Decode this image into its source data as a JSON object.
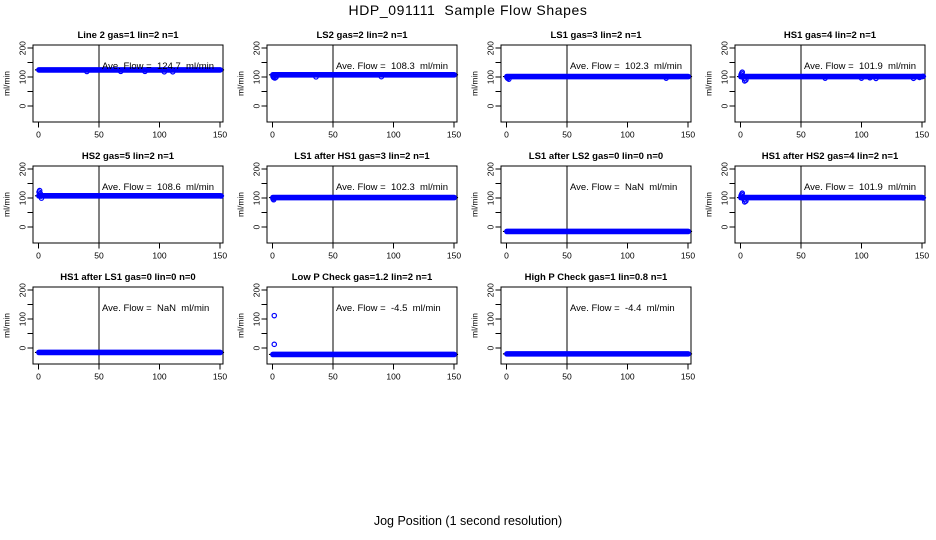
{
  "page": {
    "title": "HDP_091111  Sample Flow Shapes",
    "xlabel": "Jog Position (1 second resolution)"
  },
  "chart_data": {
    "type": "scatter",
    "title": "HDP_091111  Sample Flow Shapes",
    "xlabel": "Jog Position (1 second resolution)",
    "ylabel": "ml/min",
    "grid": {
      "rows": 3,
      "cols": 4
    },
    "xlim": [
      -4.5,
      152.5
    ],
    "ylim": [
      -55,
      211
    ],
    "xticks": [
      0,
      50,
      100,
      150
    ],
    "yticks_all": [
      0,
      50,
      100,
      150,
      200
    ],
    "yticks_labeled": [
      0,
      100,
      200
    ],
    "vline_x": 50,
    "point_color": "#0000FF",
    "line_color": "#000000",
    "annotation_template": "Ave. Flow =  {value}  ml/min",
    "plots": [
      {
        "title": "Line 2 gas=1 lin=2 n=1",
        "ave_flow": "124.7",
        "bar_y": 125,
        "bar_x": [
          0,
          150.5
        ],
        "points": [
          [
            40,
            119.5
          ],
          [
            68,
            120
          ],
          [
            88,
            120
          ],
          [
            104,
            118.5
          ],
          [
            111,
            118.5
          ]
        ]
      },
      {
        "title": "LS2 gas=2 lin=2 n=1",
        "ave_flow": "108.3",
        "bar_y": 108,
        "bar_x": [
          0,
          150.5
        ],
        "points": [
          [
            0.5,
            103
          ],
          [
            1,
            99
          ],
          [
            2,
            97
          ],
          [
            3,
            100
          ],
          [
            36,
            101
          ],
          [
            90,
            101.5
          ]
        ]
      },
      {
        "title": "LS1 gas=3 lin=2 n=1",
        "ave_flow": "102.3",
        "bar_y": 102,
        "bar_x": [
          0,
          150.5
        ],
        "points": [
          [
            0.5,
            99
          ],
          [
            1,
            96
          ],
          [
            2,
            93
          ],
          [
            132,
            96.5
          ]
        ]
      },
      {
        "title": "HS1 gas=4 lin=2 n=1",
        "ave_flow": "101.9",
        "bar_y": 102,
        "bar_x": [
          0,
          150.5
        ],
        "points": [
          [
            0.5,
            108
          ],
          [
            1,
            113
          ],
          [
            1.5,
            117
          ],
          [
            2,
            104
          ],
          [
            3,
            95
          ],
          [
            3.5,
            87
          ],
          [
            4.5,
            90
          ],
          [
            70,
            96.5
          ],
          [
            100,
            96.5
          ],
          [
            107,
            98
          ],
          [
            112,
            95.5
          ],
          [
            143,
            96
          ],
          [
            148,
            99
          ],
          [
            151,
            103
          ]
        ]
      },
      {
        "title": "HS2 gas=5 lin=2 n=1",
        "ave_flow": "108.6",
        "bar_y": 108,
        "bar_x": [
          0,
          150.5
        ],
        "points": [
          [
            0.5,
            121
          ],
          [
            1,
            126
          ],
          [
            1.5,
            116
          ],
          [
            2,
            107
          ],
          [
            2.5,
            100
          ],
          [
            151,
            107.5
          ]
        ]
      },
      {
        "title": "LS1 after HS1 gas=3 lin=2 n=1",
        "ave_flow": "102.3",
        "bar_y": 102,
        "bar_x": [
          0,
          150.5
        ],
        "points": [
          [
            0.5,
            98
          ],
          [
            1,
            94.5
          ]
        ]
      },
      {
        "title": "LS1 after LS2 gas=0 lin=0 n=0",
        "ave_flow": "NaN",
        "bar_y": -15,
        "bar_x": [
          0,
          150.5
        ],
        "points": []
      },
      {
        "title": "HS1 after HS2 gas=4 lin=2 n=1",
        "ave_flow": "101.9",
        "bar_y": 102,
        "bar_x": [
          0,
          150.5
        ],
        "points": [
          [
            0.5,
            108
          ],
          [
            1,
            113
          ],
          [
            1.5,
            117
          ],
          [
            2,
            104
          ],
          [
            3,
            95
          ],
          [
            3.5,
            87
          ],
          [
            4.5,
            90
          ],
          [
            151,
            101
          ]
        ]
      },
      {
        "title": "HS1 after LS1 gas=0 lin=0 n=0",
        "ave_flow": "NaN",
        "bar_y": -15,
        "bar_x": [
          0,
          150.5
        ],
        "points": []
      },
      {
        "title": "Low P Check gas=1.2 lin=2 n=1",
        "ave_flow": "-4.5",
        "bar_y": -22,
        "bar_x": [
          0,
          150.5
        ],
        "points": [
          [
            1.5,
            112
          ],
          [
            1.5,
            13
          ]
        ]
      },
      {
        "title": "High P Check gas=1 lin=0.8 n=1",
        "ave_flow": "-4.4",
        "bar_y": -20,
        "bar_x": [
          0,
          150.5
        ],
        "points": []
      }
    ]
  }
}
